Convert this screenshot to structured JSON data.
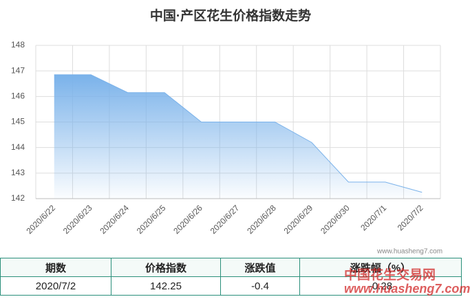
{
  "chart_data": {
    "type": "area",
    "title": "中国·产区花生价格指数走势",
    "categories": [
      "2020/6/22",
      "2020/6/23",
      "2020/6/24",
      "2020/6/25",
      "2020/6/26",
      "2020/6/27",
      "2020/6/28",
      "2020/6/29",
      "2020/6/30",
      "2020/7/1",
      "2020/7/2"
    ],
    "values": [
      146.85,
      146.85,
      146.15,
      146.15,
      145.0,
      145.0,
      145.0,
      144.2,
      142.65,
      142.65,
      142.25
    ],
    "color": "#7ab2ea",
    "ylim": [
      142,
      148
    ],
    "yticks": [
      142,
      143,
      144,
      145,
      146,
      147,
      148
    ],
    "grid": true
  },
  "watermark": {
    "site": "www.huasheng7.com",
    "logo_name": "中国花生交易网",
    "logo_url": "www.huasheng7.com"
  },
  "table": {
    "header": [
      "期数",
      "价格指数",
      "涨跌值",
      "涨跌幅（%）"
    ],
    "rows": [
      [
        "2020/7/2",
        "142.25",
        "-0.4",
        "-0.28"
      ]
    ]
  }
}
